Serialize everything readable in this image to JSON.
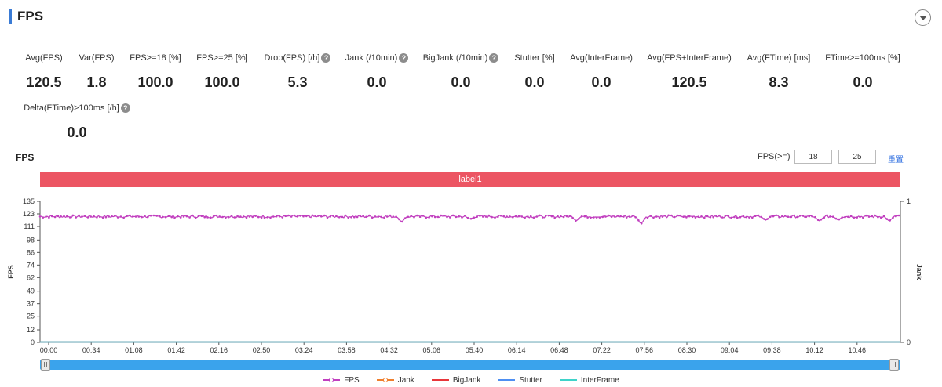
{
  "header": {
    "title": "FPS"
  },
  "metrics": [
    {
      "label": "Avg(FPS)",
      "value": "120.5",
      "help": false
    },
    {
      "label": "Var(FPS)",
      "value": "1.8",
      "help": false
    },
    {
      "label": "FPS>=18 [%]",
      "value": "100.0",
      "help": false
    },
    {
      "label": "FPS>=25 [%]",
      "value": "100.0",
      "help": false
    },
    {
      "label": "Drop(FPS) [/h]",
      "value": "5.3",
      "help": true
    },
    {
      "label": "Jank (/10min)",
      "value": "0.0",
      "help": true
    },
    {
      "label": "BigJank (/10min)",
      "value": "0.0",
      "help": true
    },
    {
      "label": "Stutter [%]",
      "value": "0.0",
      "help": false
    },
    {
      "label": "Avg(InterFrame)",
      "value": "0.0",
      "help": false
    },
    {
      "label": "Avg(FPS+InterFrame)",
      "value": "120.5",
      "help": false
    },
    {
      "label": "Avg(FTime) [ms]",
      "value": "8.3",
      "help": false
    },
    {
      "label": "FTime>=100ms [%]",
      "value": "0.0",
      "help": false
    },
    {
      "label": "Delta(FTime)>100ms [/h]",
      "value": "0.0",
      "help": true
    }
  ],
  "help_glyph": "?",
  "controls": {
    "chart_title": "FPS",
    "fps_threshold_label": "FPS(>=)",
    "fps_threshold_1": "18",
    "fps_threshold_2": "25",
    "reset_label": "重置"
  },
  "label_band": {
    "text": "label1",
    "color": "#ec5563"
  },
  "legend": [
    {
      "name": "FPS",
      "color": "#c13fbf",
      "marker": true
    },
    {
      "name": "Jank",
      "color": "#f07f2d",
      "marker": true
    },
    {
      "name": "BigJank",
      "color": "#e8363a",
      "marker": false
    },
    {
      "name": "Stutter",
      "color": "#4e8ff2",
      "marker": false
    },
    {
      "name": "InterFrame",
      "color": "#3fd3c9",
      "marker": false
    }
  ],
  "chart_data": {
    "type": "line",
    "xlabel": "",
    "ylabel": "FPS",
    "y2label": "Jank",
    "x_ticks": [
      "00:00",
      "00:34",
      "01:08",
      "01:42",
      "02:16",
      "02:50",
      "03:24",
      "03:58",
      "04:32",
      "05:06",
      "05:40",
      "06:14",
      "06:48",
      "07:22",
      "07:56",
      "08:30",
      "09:04",
      "09:38",
      "10:12",
      "10:46"
    ],
    "x_range_seconds": [
      0,
      690
    ],
    "ylim": [
      0,
      135
    ],
    "y_ticks": [
      0,
      12,
      25,
      37,
      49,
      62,
      74,
      86,
      98,
      111,
      123,
      135
    ],
    "y2lim": [
      0,
      1
    ],
    "y2_ticks": [
      0,
      1
    ],
    "grid": false,
    "legend_position": "bottom",
    "series": [
      {
        "name": "FPS",
        "color": "#c13fbf",
        "baseline": 120.5,
        "dips": [
          {
            "t": 0,
            "value": 121
          },
          {
            "t": 290,
            "value": 115
          },
          {
            "t": 345,
            "value": 118
          },
          {
            "t": 430,
            "value": 116
          },
          {
            "t": 482,
            "value": 113
          },
          {
            "t": 582,
            "value": 117
          },
          {
            "t": 625,
            "value": 116
          },
          {
            "t": 640,
            "value": 117
          },
          {
            "t": 681,
            "value": 116
          },
          {
            "t": 690,
            "value": 122
          }
        ]
      },
      {
        "name": "Jank",
        "color": "#f07f2d",
        "constant": 0
      },
      {
        "name": "BigJank",
        "color": "#e8363a",
        "constant": 0
      },
      {
        "name": "Stutter",
        "color": "#4e8ff2",
        "constant": 0
      },
      {
        "name": "InterFrame",
        "color": "#3fd3c9",
        "constant": 0
      }
    ]
  }
}
